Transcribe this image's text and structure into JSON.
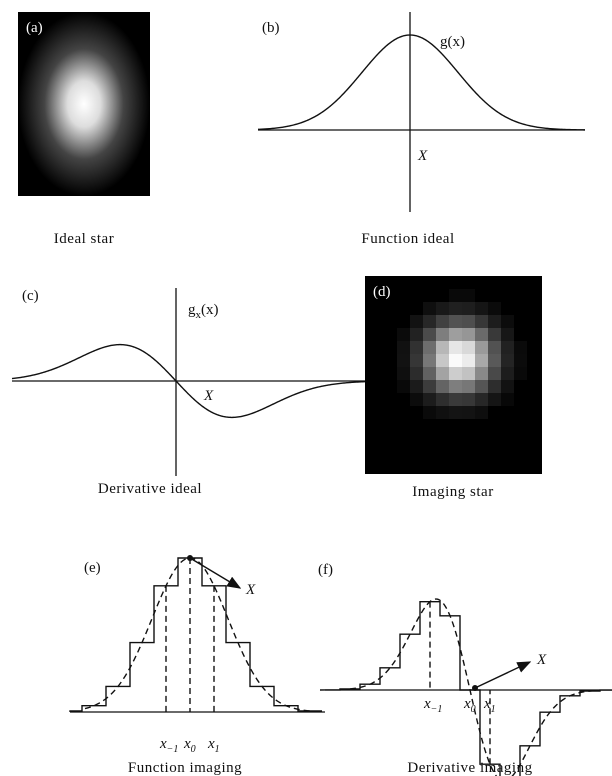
{
  "panels": {
    "a": {
      "label": "(a)",
      "caption": "Ideal star"
    },
    "b": {
      "label": "(b)",
      "caption": "Function ideal",
      "curve_label": "g(x)",
      "axis_label": "X"
    },
    "c": {
      "label": "(c)",
      "caption": "Derivative ideal",
      "curve_label": {
        "base": "g",
        "sub": "x",
        "tail": "(x)"
      },
      "axis_label": "X"
    },
    "d": {
      "label": "(d)",
      "caption": "Imaging star"
    },
    "e": {
      "label": "(e)",
      "caption": "Function imaging",
      "arrow_label": "X",
      "ticks": [
        {
          "base": "x",
          "sub": "−1"
        },
        {
          "base": "x",
          "sub": "0"
        },
        {
          "base": "x",
          "sub": "1"
        }
      ]
    },
    "f": {
      "label": "(f)",
      "caption": "Derivative imaging",
      "arrow_label": "X",
      "ticks": [
        {
          "base": "x",
          "sub": "−1"
        },
        {
          "base": "x",
          "sub": "0"
        },
        {
          "base": "x",
          "sub": "1"
        }
      ]
    }
  }
}
